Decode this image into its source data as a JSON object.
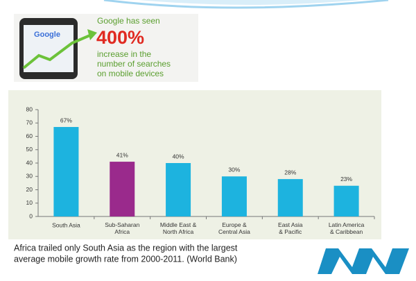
{
  "infographic": {
    "phone_label": "Google",
    "headline": "Google has seen",
    "stat": "400%",
    "body": [
      "increase in the",
      "number of searches",
      "on mobile devices"
    ]
  },
  "chart_data": {
    "type": "bar",
    "categories": [
      "South Asia",
      "Sub-Saharan\nAfrica",
      "Middle East &\nNorth Africa",
      "Europe &\nCentral Asia",
      "East Asia\n& Pacific",
      "Latin America\n& Caribbean"
    ],
    "values": [
      67,
      41,
      40,
      30,
      28,
      23
    ],
    "value_labels": [
      "67%",
      "41%",
      "40%",
      "30%",
      "28%",
      "23%"
    ],
    "colors": [
      "#1db3df",
      "#9a2a8c",
      "#1db3df",
      "#1db3df",
      "#1db3df",
      "#1db3df"
    ],
    "ylim": [
      0,
      80
    ],
    "yticks": [
      0,
      10,
      20,
      30,
      40,
      50,
      60,
      70,
      80
    ]
  },
  "caption": [
    "Africa trailed only South Asia as the region with the largest",
    "average mobile growth rate from 2000-2011. (World Bank)"
  ]
}
